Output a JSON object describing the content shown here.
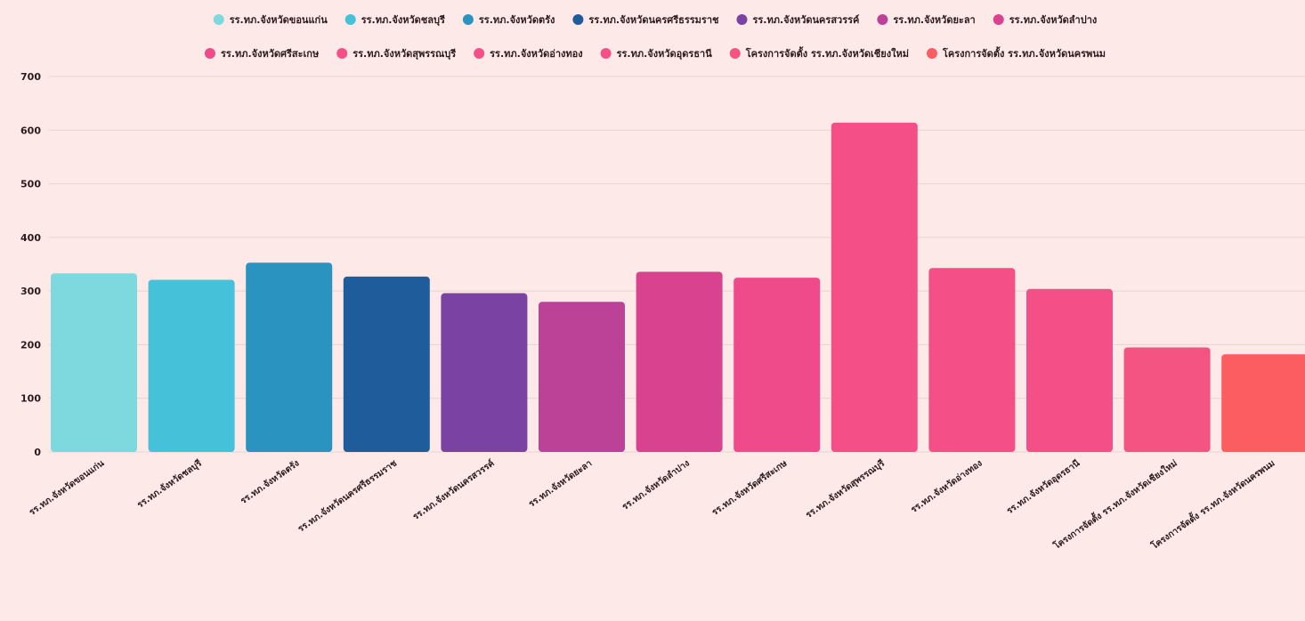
{
  "chart_data": {
    "type": "bar",
    "title": "",
    "xlabel": "",
    "ylabel": "",
    "ylim": [
      0,
      700
    ],
    "yticks": [
      0,
      100,
      200,
      300,
      400,
      500,
      600,
      700
    ],
    "grid": true,
    "legend_position": "top",
    "categories": [
      "รร.ทภ.จังหวัดขอนแก่น",
      "รร.ทภ.จังหวัดชลบุรี",
      "รร.ทภ.จังหวัดตรัง",
      "รร.ทภ.จังหวัดนครศรีธรรมราช",
      "รร.ทภ.จังหวัดนครสวรรค์",
      "รร.ทภ.จังหวัดยะลา",
      "รร.ทภ.จังหวัดลำปาง",
      "รร.ทภ.จังหวัดศรีสะเกษ",
      "รร.ทภ.จังหวัดสุพรรณบุรี",
      "รร.ทภ.จังหวัดอ่างทอง",
      "รร.ทภ.จังหวัดอุดรธานี",
      "โครงการจัดตั้ง รร.ทภ.จังหวัดเชียงใหม่",
      "โครงการจัดตั้ง รร.ทภ.จังหวัดนครพนม"
    ],
    "values": [
      333,
      321,
      353,
      327,
      296,
      280,
      336,
      325,
      614,
      343,
      304,
      195,
      182
    ],
    "colors": [
      "#7dd9de",
      "#45c2da",
      "#2b93bf",
      "#1f5c9c",
      "#7a42a3",
      "#bb4296",
      "#d8428f",
      "#ef4a8a",
      "#f54f87",
      "#f54f87",
      "#f54f87",
      "#f35481",
      "#fc5d60"
    ]
  }
}
